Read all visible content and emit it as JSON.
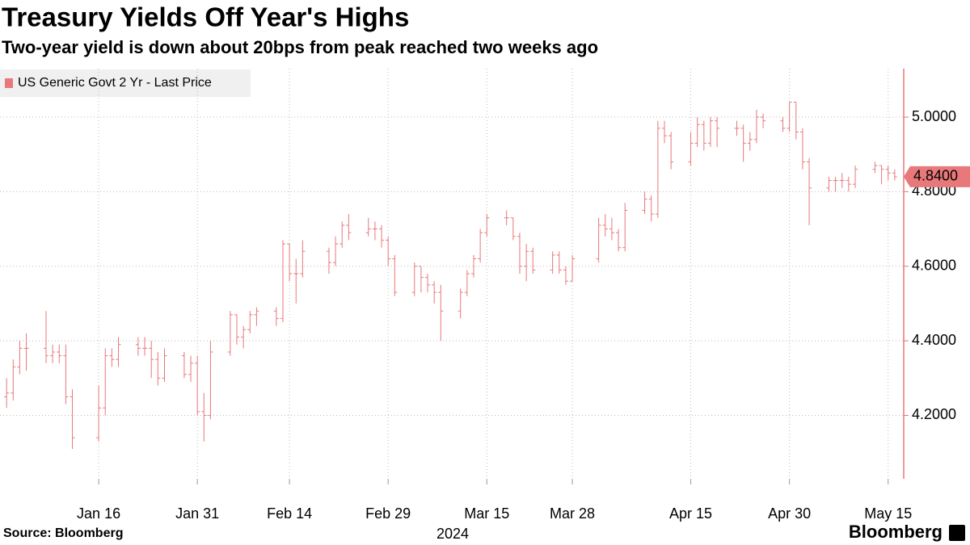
{
  "chart_data": {
    "type": "ohlc",
    "title": "Treasury Yields Off Year's Highs",
    "subtitle": "Two-year yield is down about 20bps from peak reached two weeks ago",
    "source": "Source: Bloomberg",
    "brand": "Bloomberg",
    "x_year_label": "2024",
    "x": [
      "2024-01-02",
      "2024-01-03",
      "2024-01-04",
      "2024-01-05",
      "2024-01-08",
      "2024-01-09",
      "2024-01-10",
      "2024-01-11",
      "2024-01-12",
      "2024-01-16",
      "2024-01-17",
      "2024-01-18",
      "2024-01-19",
      "2024-01-22",
      "2024-01-23",
      "2024-01-24",
      "2024-01-25",
      "2024-01-26",
      "2024-01-29",
      "2024-01-30",
      "2024-01-31",
      "2024-02-01",
      "2024-02-02",
      "2024-02-05",
      "2024-02-06",
      "2024-02-07",
      "2024-02-08",
      "2024-02-09",
      "2024-02-12",
      "2024-02-13",
      "2024-02-14",
      "2024-02-15",
      "2024-02-16",
      "2024-02-20",
      "2024-02-21",
      "2024-02-22",
      "2024-02-23",
      "2024-02-26",
      "2024-02-27",
      "2024-02-28",
      "2024-02-29",
      "2024-03-01",
      "2024-03-04",
      "2024-03-05",
      "2024-03-06",
      "2024-03-07",
      "2024-03-08",
      "2024-03-11",
      "2024-03-12",
      "2024-03-13",
      "2024-03-14",
      "2024-03-15",
      "2024-03-18",
      "2024-03-19",
      "2024-03-20",
      "2024-03-21",
      "2024-03-22",
      "2024-03-25",
      "2024-03-26",
      "2024-03-27",
      "2024-03-28",
      "2024-04-01",
      "2024-04-02",
      "2024-04-03",
      "2024-04-04",
      "2024-04-05",
      "2024-04-08",
      "2024-04-09",
      "2024-04-10",
      "2024-04-11",
      "2024-04-12",
      "2024-04-15",
      "2024-04-16",
      "2024-04-17",
      "2024-04-18",
      "2024-04-19",
      "2024-04-22",
      "2024-04-23",
      "2024-04-24",
      "2024-04-25",
      "2024-04-26",
      "2024-04-29",
      "2024-04-30",
      "2024-05-01",
      "2024-05-02",
      "2024-05-03",
      "2024-05-06",
      "2024-05-07",
      "2024-05-08",
      "2024-05-09",
      "2024-05-10",
      "2024-05-13",
      "2024-05-14",
      "2024-05-15",
      "2024-05-16"
    ],
    "series": [
      {
        "name": "US Generic Govt 2 Yr - Last Price",
        "color": "#e8787a",
        "open": [
          4.25,
          4.26,
          4.33,
          4.38,
          4.38,
          4.36,
          4.37,
          4.36,
          4.25,
          4.14,
          4.22,
          4.36,
          4.35,
          4.39,
          4.38,
          4.38,
          4.35,
          4.3,
          4.36,
          4.31,
          4.34,
          4.21,
          4.2,
          4.37,
          4.47,
          4.41,
          4.43,
          4.47,
          4.48,
          4.46,
          4.66,
          4.58,
          4.58,
          4.64,
          4.61,
          4.66,
          4.71,
          4.69,
          4.7,
          4.7,
          4.67,
          4.62,
          4.53,
          4.6,
          4.57,
          4.55,
          4.53,
          4.48,
          4.53,
          4.58,
          4.62,
          4.69,
          4.73,
          4.73,
          4.68,
          4.6,
          4.64,
          4.59,
          4.63,
          4.59,
          4.56,
          4.62,
          4.71,
          4.7,
          4.69,
          4.65,
          4.75,
          4.78,
          4.74,
          4.97,
          4.95,
          4.88,
          4.93,
          4.98,
          4.93,
          4.99,
          4.97,
          4.97,
          4.93,
          4.94,
          5.0,
          4.99,
          4.97,
          5.04,
          4.96,
          4.88,
          4.81,
          4.83,
          4.83,
          4.83,
          4.82,
          4.86,
          4.87,
          4.86,
          4.85
        ],
        "high": [
          4.3,
          4.35,
          4.4,
          4.42,
          4.48,
          4.39,
          4.39,
          4.39,
          4.27,
          4.28,
          4.38,
          4.38,
          4.41,
          4.41,
          4.41,
          4.4,
          4.37,
          4.38,
          4.37,
          4.36,
          4.36,
          4.26,
          4.4,
          4.48,
          4.47,
          4.44,
          4.48,
          4.49,
          4.49,
          4.67,
          4.66,
          4.62,
          4.67,
          4.65,
          4.68,
          4.72,
          4.74,
          4.73,
          4.72,
          4.71,
          4.68,
          4.63,
          4.61,
          4.6,
          4.58,
          4.56,
          4.55,
          4.54,
          4.59,
          4.63,
          4.7,
          4.74,
          4.75,
          4.73,
          4.69,
          4.66,
          4.65,
          4.64,
          4.64,
          4.6,
          4.63,
          4.73,
          4.74,
          4.73,
          4.7,
          4.77,
          4.8,
          4.79,
          4.99,
          4.99,
          4.96,
          4.96,
          5.0,
          4.99,
          5.0,
          5.0,
          4.99,
          4.98,
          4.96,
          5.02,
          5.01,
          5.0,
          5.04,
          5.04,
          4.97,
          4.89,
          4.84,
          4.84,
          4.85,
          4.84,
          4.87,
          4.88,
          4.87,
          4.87,
          4.86
        ],
        "low": [
          4.22,
          4.24,
          4.31,
          4.32,
          4.34,
          4.34,
          4.34,
          4.23,
          4.11,
          4.13,
          4.2,
          4.33,
          4.33,
          4.36,
          4.36,
          4.3,
          4.28,
          4.29,
          4.3,
          4.29,
          4.2,
          4.13,
          4.19,
          4.36,
          4.39,
          4.38,
          4.42,
          4.44,
          4.44,
          4.45,
          4.56,
          4.5,
          4.57,
          4.58,
          4.6,
          4.65,
          4.67,
          4.68,
          4.67,
          4.65,
          4.6,
          4.52,
          4.52,
          4.53,
          4.53,
          4.5,
          4.4,
          4.46,
          4.52,
          4.57,
          4.61,
          4.68,
          4.71,
          4.67,
          4.58,
          4.56,
          4.58,
          4.58,
          4.58,
          4.55,
          4.56,
          4.61,
          4.68,
          4.67,
          4.64,
          4.64,
          4.74,
          4.72,
          4.73,
          4.93,
          4.86,
          4.87,
          4.92,
          4.91,
          4.92,
          4.92,
          4.95,
          4.88,
          4.91,
          4.93,
          4.97,
          4.96,
          4.96,
          4.94,
          4.86,
          4.71,
          4.8,
          4.8,
          4.81,
          4.8,
          4.81,
          4.85,
          4.82,
          4.83,
          4.83
        ],
        "close": [
          4.26,
          4.33,
          4.38,
          4.38,
          4.36,
          4.37,
          4.36,
          4.25,
          4.14,
          4.22,
          4.36,
          4.35,
          4.39,
          4.38,
          4.38,
          4.35,
          4.3,
          4.36,
          4.31,
          4.34,
          4.21,
          4.2,
          4.37,
          4.47,
          4.41,
          4.43,
          4.47,
          4.48,
          4.46,
          4.66,
          4.58,
          4.58,
          4.64,
          4.61,
          4.66,
          4.71,
          4.69,
          4.7,
          4.7,
          4.67,
          4.62,
          4.53,
          4.6,
          4.57,
          4.55,
          4.53,
          4.48,
          4.53,
          4.58,
          4.62,
          4.69,
          4.73,
          4.73,
          4.68,
          4.6,
          4.64,
          4.59,
          4.63,
          4.59,
          4.56,
          4.62,
          4.71,
          4.7,
          4.69,
          4.65,
          4.75,
          4.78,
          4.74,
          4.97,
          4.95,
          4.88,
          4.93,
          4.98,
          4.93,
          4.99,
          4.97,
          4.97,
          4.93,
          4.94,
          5.0,
          4.99,
          4.97,
          5.04,
          4.96,
          4.88,
          4.81,
          4.83,
          4.83,
          4.83,
          4.82,
          4.86,
          4.87,
          4.86,
          4.85,
          4.84
        ]
      }
    ],
    "last_value": {
      "value": 4.84,
      "label": "4.8400"
    },
    "xlim": [
      "2024-01-01",
      "2024-05-17"
    ],
    "xticks": [
      {
        "value": "2024-01-16",
        "label": "Jan 16"
      },
      {
        "value": "2024-01-31",
        "label": "Jan 31"
      },
      {
        "value": "2024-02-14",
        "label": "Feb 14"
      },
      {
        "value": "2024-02-29",
        "label": "Feb 29"
      },
      {
        "value": "2024-03-15",
        "label": "Mar 15"
      },
      {
        "value": "2024-03-28",
        "label": "Mar 28"
      },
      {
        "value": "2024-04-15",
        "label": "Apr 15"
      },
      {
        "value": "2024-04-30",
        "label": "Apr 30"
      },
      {
        "value": "2024-05-15",
        "label": "May 15"
      }
    ],
    "ylim": [
      4.03,
      5.13
    ],
    "yticks": [
      {
        "value": 4.2,
        "label": "4.2000"
      },
      {
        "value": 4.4,
        "label": "4.4000"
      },
      {
        "value": 4.6,
        "label": "4.6000"
      },
      {
        "value": 4.8,
        "label": "4.8000"
      },
      {
        "value": 5.0,
        "label": "5.0000"
      }
    ],
    "grid": true,
    "legend": "top-left"
  }
}
